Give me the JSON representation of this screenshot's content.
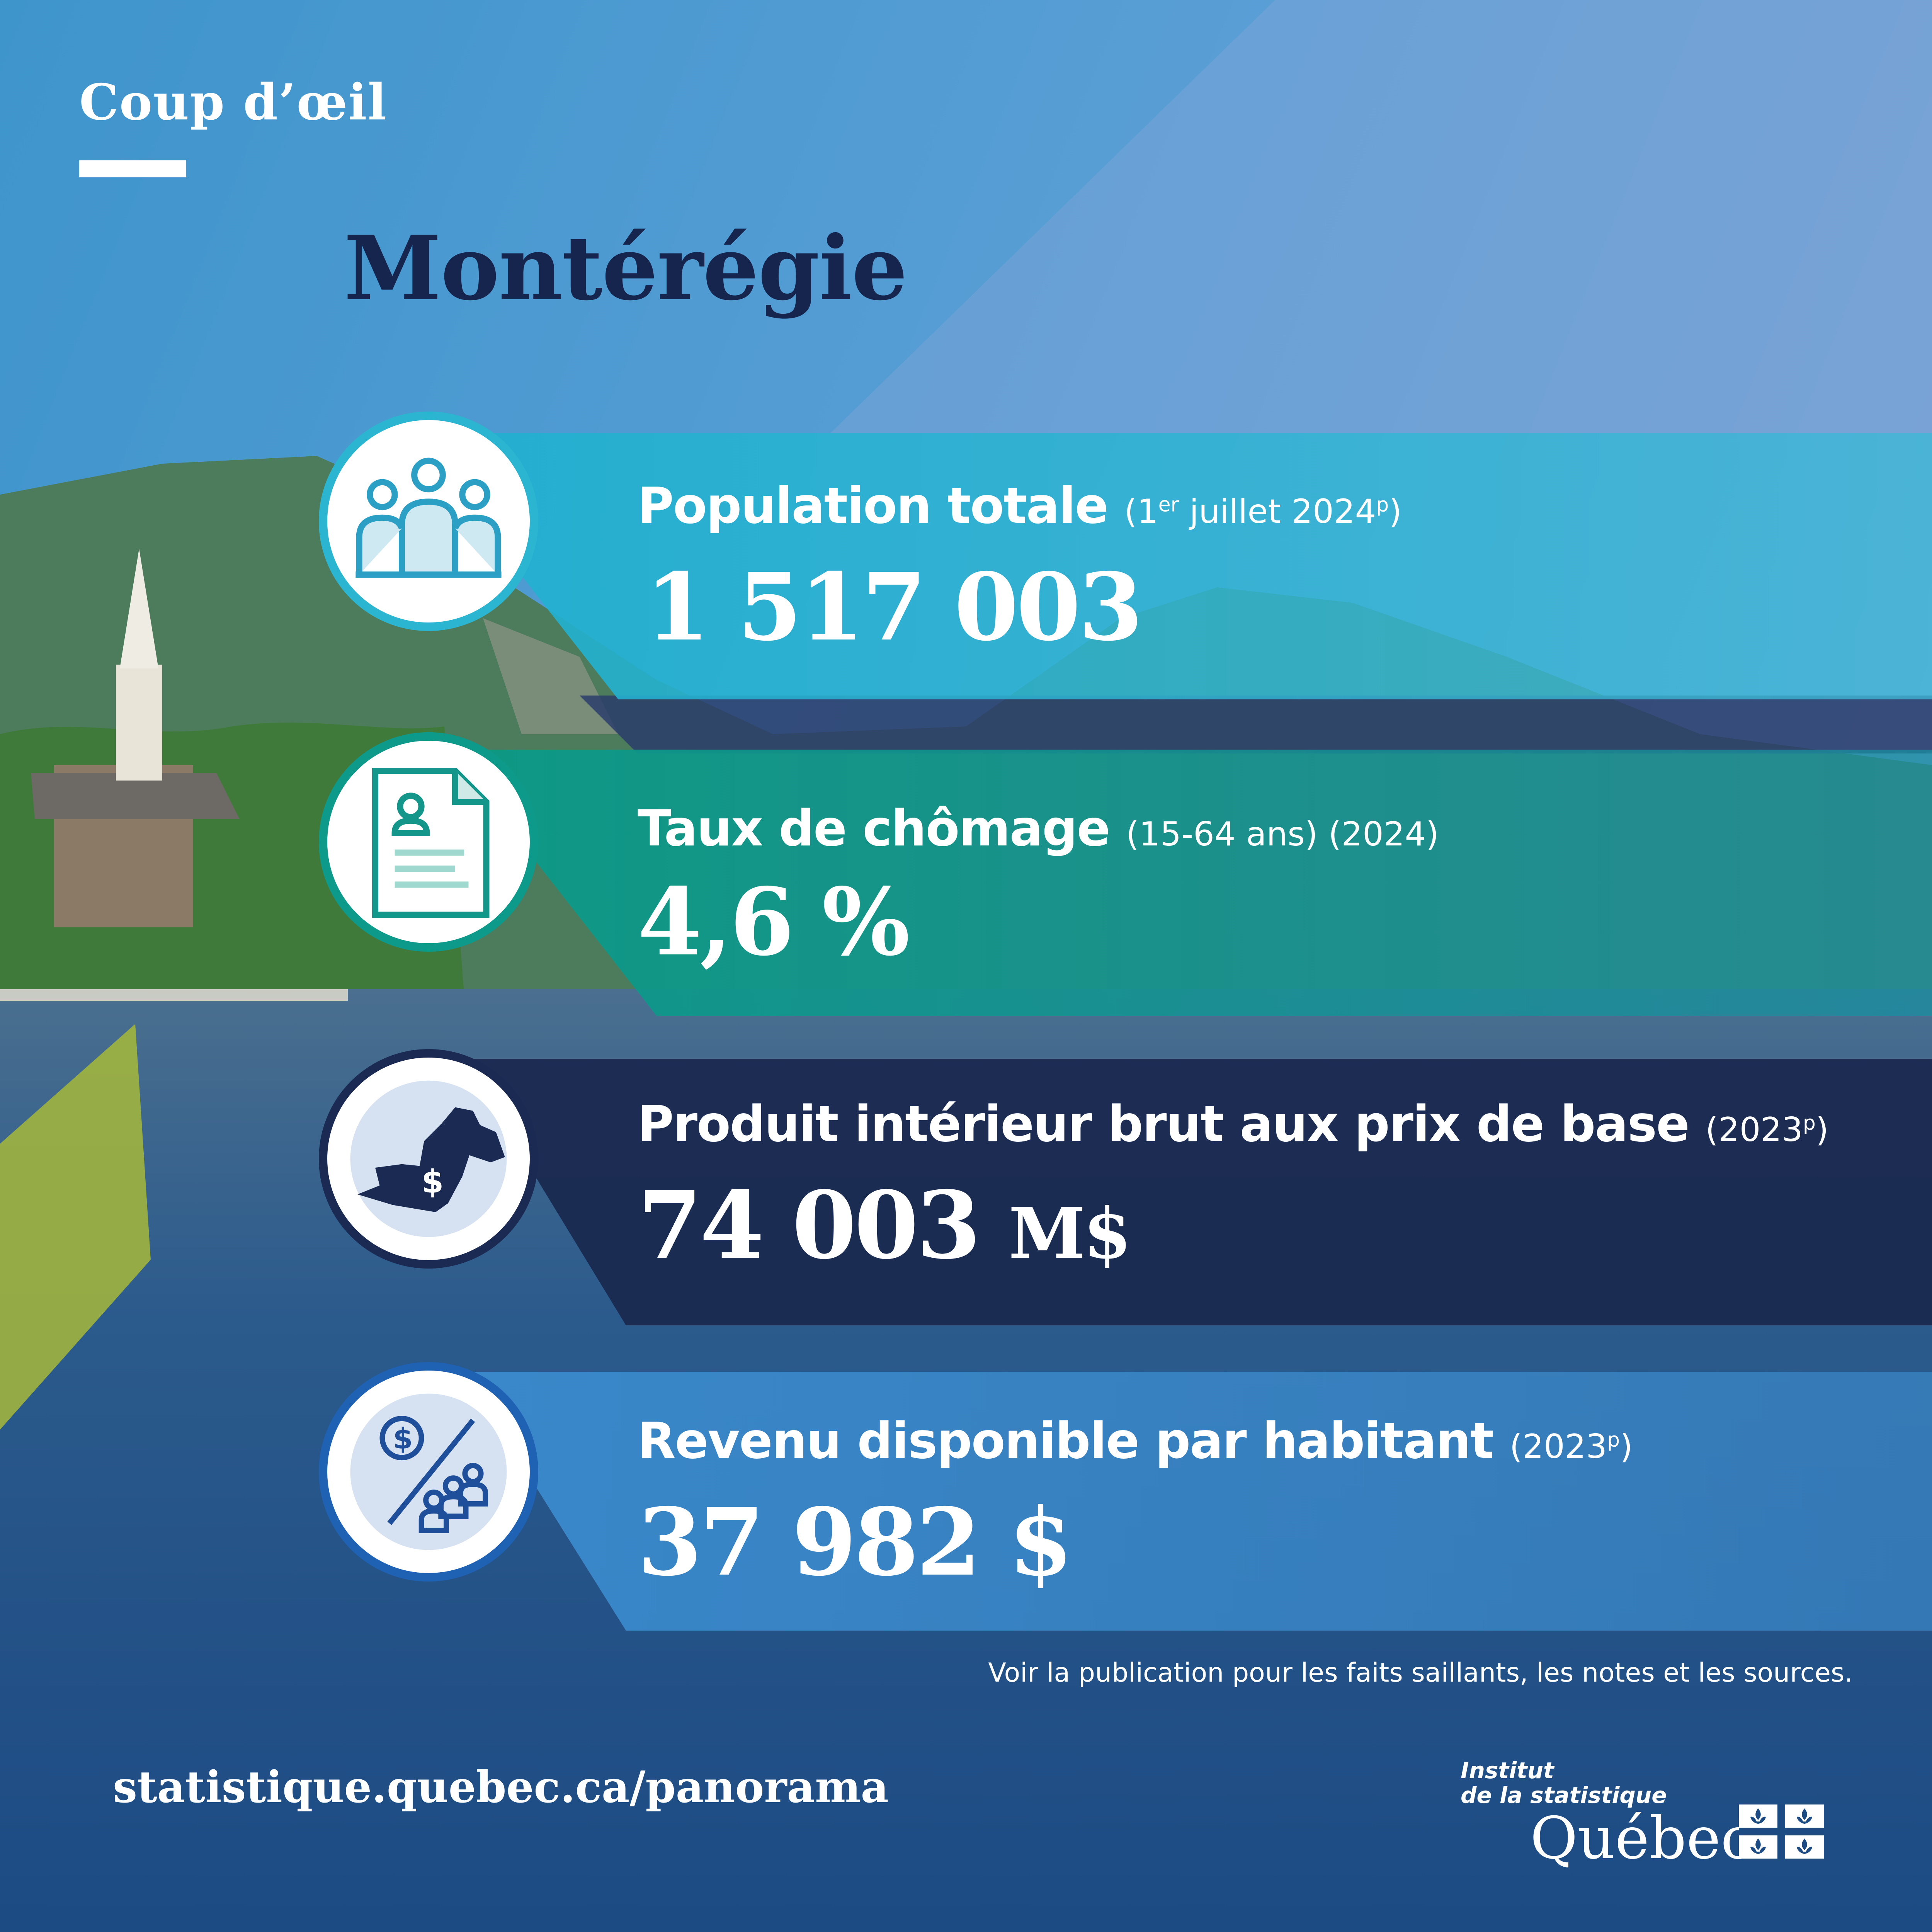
{
  "colors": {
    "sky_top": "#4a9dd0",
    "sky_light": "#72a6d8",
    "mountain": "#4f7f5a",
    "water": "#214f86",
    "band_cyan": "#2bb5d0",
    "band_teal": "#0e9a8b",
    "band_navy": "#1b2a52",
    "band_blue": "#3f8fcf",
    "title_navy": "#16254d",
    "olive": "#a4b63a"
  },
  "header": {
    "kicker": "Coup d’œil",
    "title": "Montérégie"
  },
  "stats": [
    {
      "icon": "population-icon",
      "label": "Population totale",
      "note_pre": "(1",
      "note_sup": "er",
      "note_mid": " juillet 2024",
      "note_sup2": "p",
      "note_post": ")",
      "value": "1 517 003"
    },
    {
      "icon": "document-icon",
      "label": "Taux de chômage",
      "note": "(15-64 ans)  (2024)",
      "value": "4,6 %"
    },
    {
      "icon": "region-map-icon",
      "label": "Produit intérieur brut aux prix de base",
      "note_pre": "(2023",
      "note_sup": "p",
      "note_post": ")",
      "value": "74 003",
      "unit": "M$"
    },
    {
      "icon": "income-per-capita-icon",
      "label": "Revenu disponible par habitant",
      "note_pre": "(2023",
      "note_sup": "p",
      "note_post": ")",
      "value": "37 982 $"
    }
  ],
  "footnote": "Voir la publication pour les faits saillants, les notes et les sources.",
  "url": "statistique.quebec.ca/panorama",
  "logo": {
    "line1": "Institut",
    "line2": "de la statistique",
    "line3": "Québec"
  }
}
